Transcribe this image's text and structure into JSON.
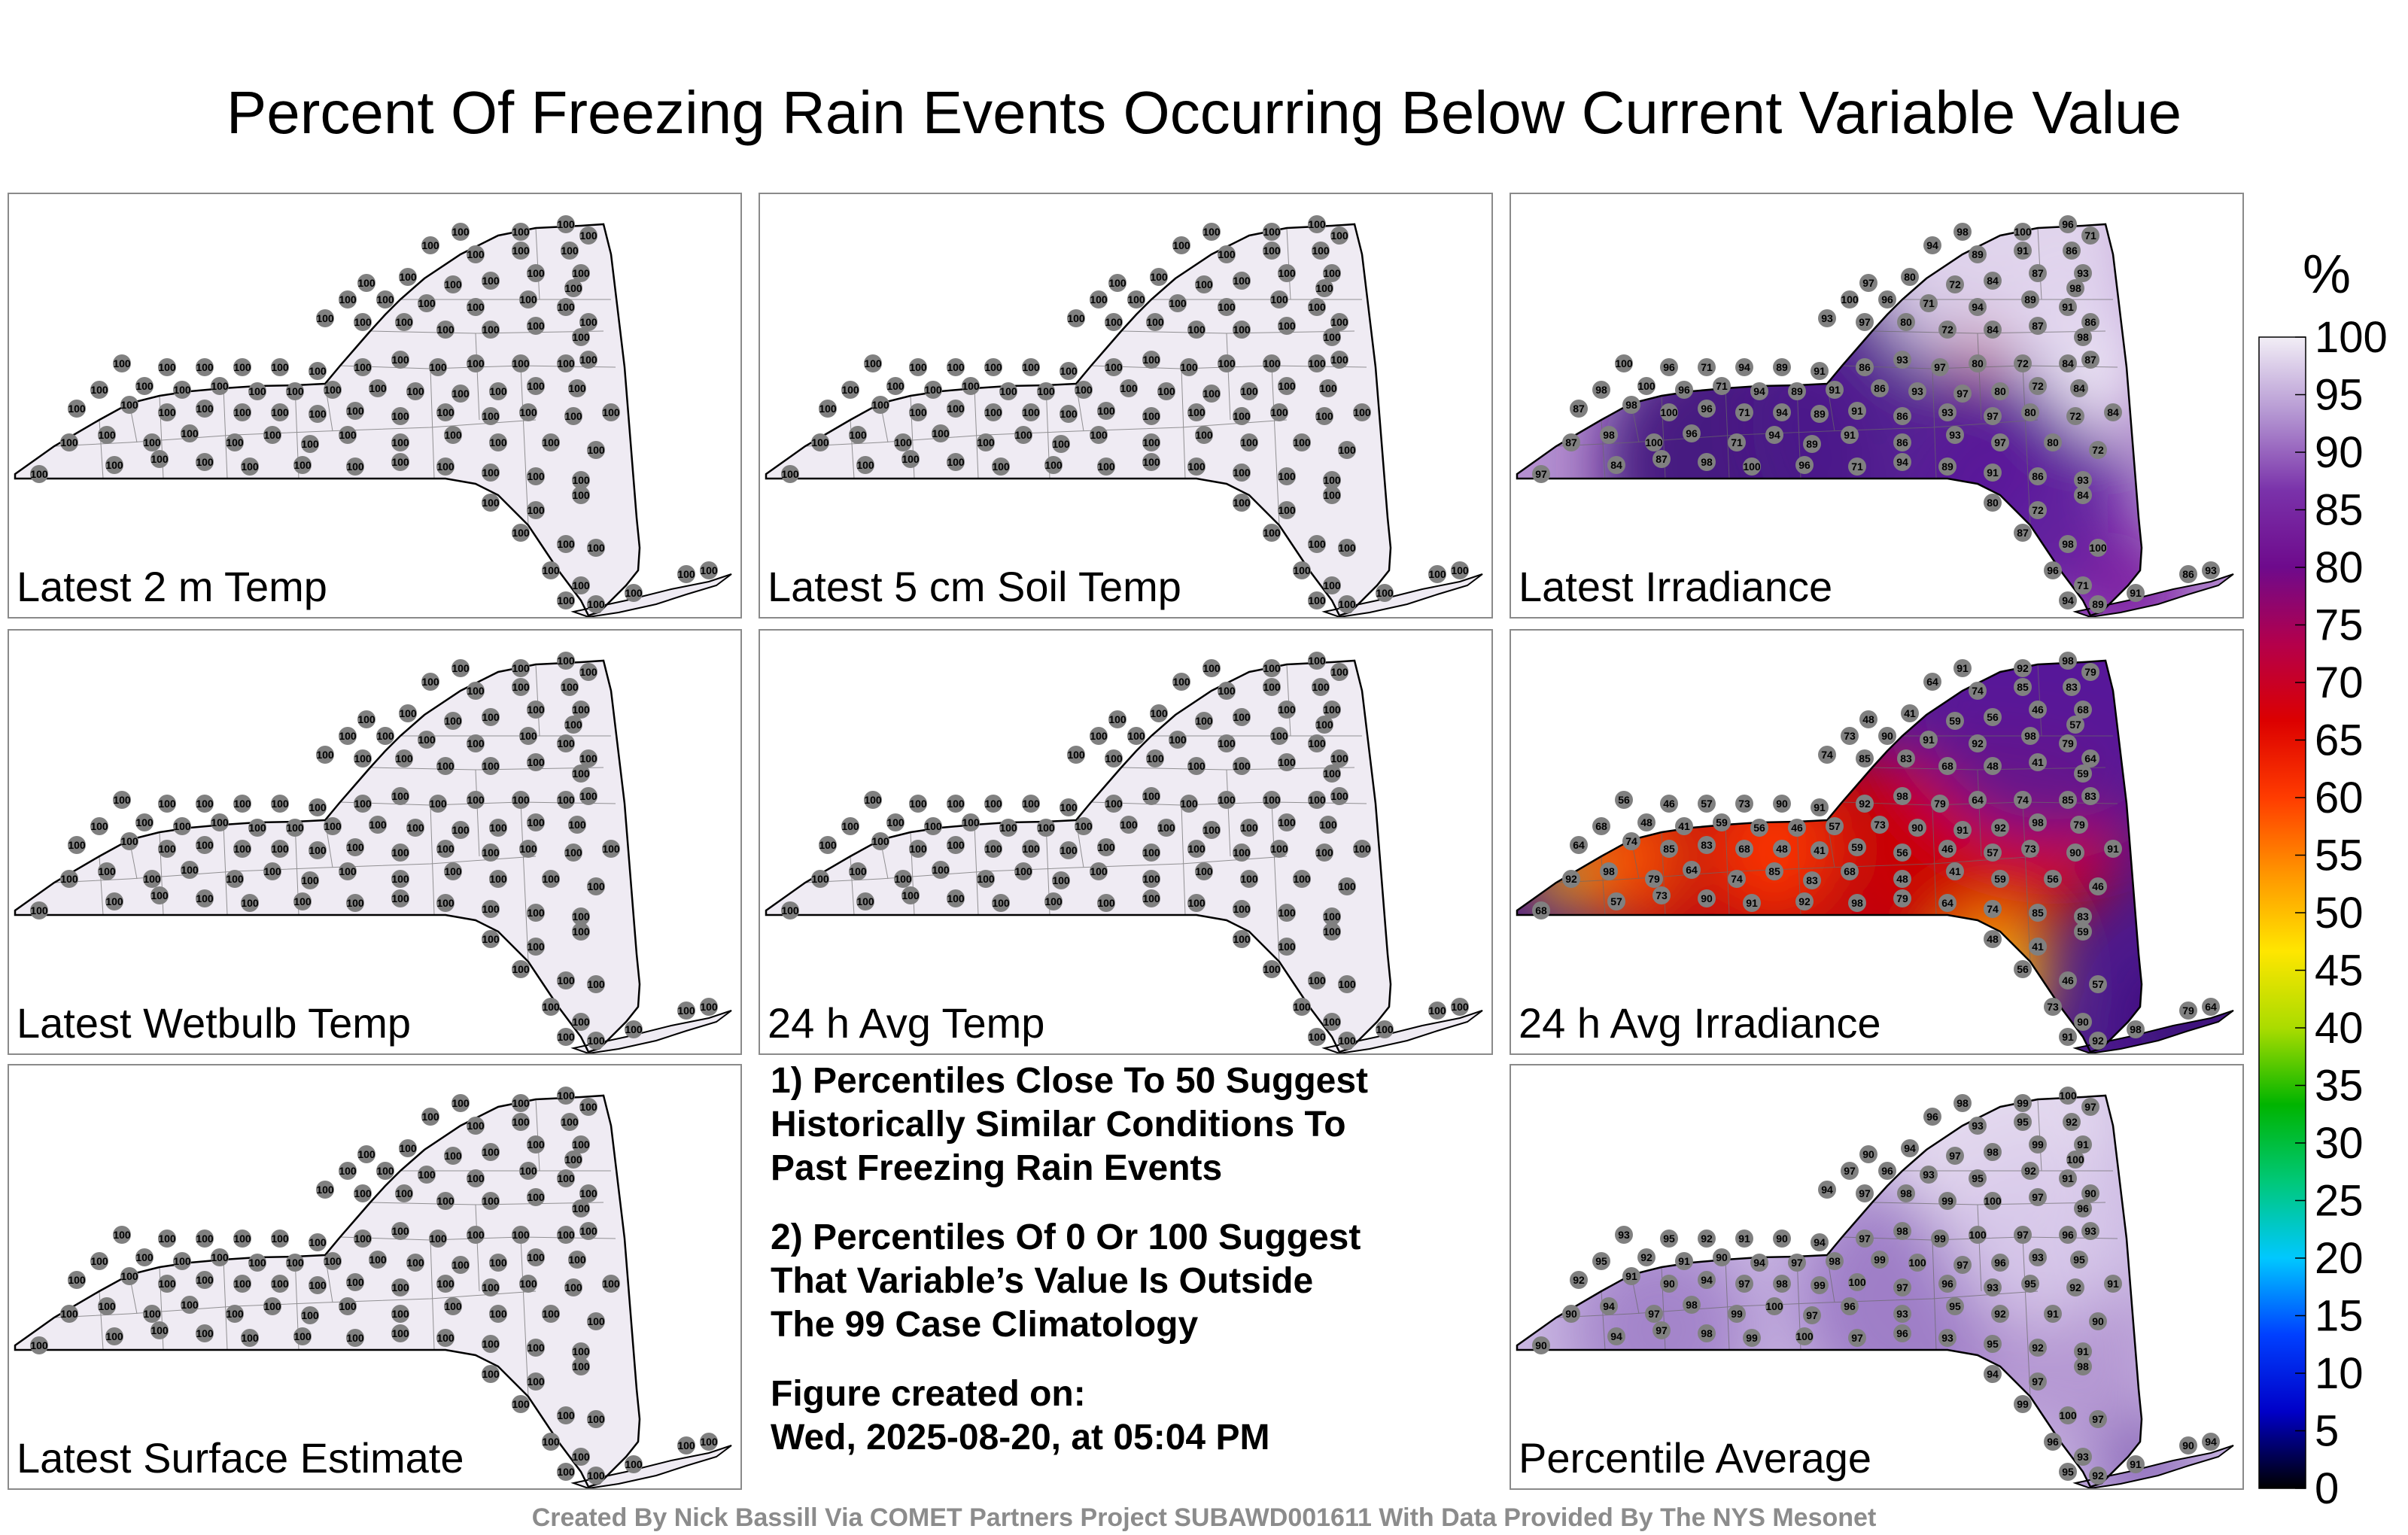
{
  "title": "Percent Of Freezing Rain Events Occurring Below Current Variable Value",
  "colors": {
    "border": "#8a8a8a",
    "state_fill_light": "#efebf3",
    "station_marker": "#808080",
    "footer_text": "#8c8c8c"
  },
  "panels": [
    {
      "label": "Latest 2 m Temp",
      "style": "uniform"
    },
    {
      "label": "Latest 5 cm Soil Temp",
      "style": "uniform"
    },
    {
      "label": "Latest Irradiance",
      "style": "purple-gradient"
    },
    {
      "label": "Latest Wetbulb Temp",
      "style": "uniform"
    },
    {
      "label": "24 h Avg Temp",
      "style": "uniform"
    },
    {
      "label": "24 h Avg Irradiance",
      "style": "heat-gradient"
    },
    {
      "label": "Latest Surface Estimate",
      "style": "uniform"
    },
    {
      "label": "Percentile Average",
      "style": "light-purple-gradient"
    }
  ],
  "uniform_station_value": "100",
  "station_samples": {
    "Latest Irradiance": [
      "98",
      "100",
      "96",
      "71",
      "94",
      "89",
      "91",
      "86",
      "93",
      "97",
      "80",
      "72",
      "84",
      "87"
    ],
    "24 h Avg Irradiance": [
      "91",
      "92",
      "98",
      "79",
      "64",
      "74",
      "85",
      "83",
      "68",
      "48",
      "41",
      "59",
      "56",
      "46",
      "57",
      "73",
      "90"
    ],
    "Percentile Average": [
      "98",
      "99",
      "100",
      "97",
      "96",
      "93",
      "95",
      "92",
      "91",
      "90",
      "94",
      "97"
    ]
  },
  "notes": [
    [
      "1) Percentiles Close To 50 Suggest",
      "Historically Similar Conditions To",
      "Past Freezing Rain Events"
    ],
    [
      "2) Percentiles Of 0 Or 100 Suggest",
      "That Variable’s Value Is Outside",
      "The 99 Case Climatology"
    ],
    [
      "Figure created on:",
      "Wed, 2025-08-20, at 05:04 PM"
    ]
  ],
  "colorbar": {
    "unit": "%",
    "min": 0,
    "max": 100,
    "tick_labels": [
      "0",
      "5",
      "10",
      "15",
      "20",
      "25",
      "30",
      "35",
      "40",
      "45",
      "50",
      "55",
      "60",
      "65",
      "70",
      "75",
      "80",
      "85",
      "90",
      "95",
      "100"
    ],
    "stops": [
      "#000000",
      "#0000c8",
      "#0040ff",
      "#00c8ff",
      "#00c878",
      "#00b400",
      "#aadc00",
      "#ffe600",
      "#ff9600",
      "#ff3c00",
      "#dc0000",
      "#b4004b",
      "#6e0a8c",
      "#7a32aa",
      "#b496d2",
      "#f2eef6"
    ]
  },
  "footer": "Created By Nick Bassill Via COMET Partners Project SUBAWD001611 With Data Provided By The NYS Mesonet"
}
